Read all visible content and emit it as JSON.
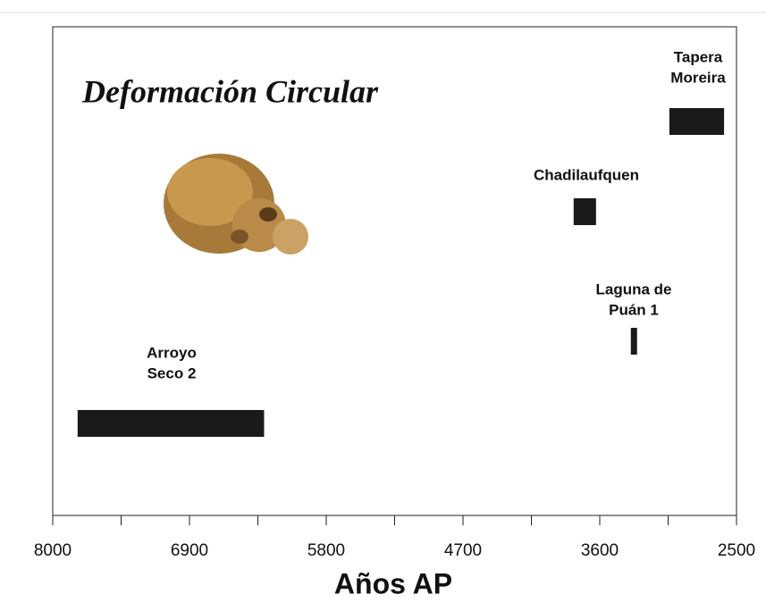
{
  "chart_data": {
    "type": "range-bar",
    "title": "Deformación Circular",
    "x_label": "Años AP",
    "categories": [
      [
        "Arroyo",
        "Seco 2"
      ],
      [
        "Chadilaufquen"
      ],
      [
        "Laguna de",
        "Puán 1"
      ],
      [
        "Tapera",
        "Moreira"
      ]
    ],
    "values": [
      [
        7800,
        6300
      ],
      [
        3810,
        3630
      ],
      [
        3350,
        3300
      ],
      [
        3040,
        2600
      ]
    ],
    "color": "#1a1a1a",
    "xlim": [
      8000,
      2500
    ],
    "xticks": [
      8000,
      6900,
      5800,
      4700,
      3600,
      2500
    ],
    "xminorticks": [
      7450,
      6350,
      5250,
      4150,
      3050
    ]
  }
}
